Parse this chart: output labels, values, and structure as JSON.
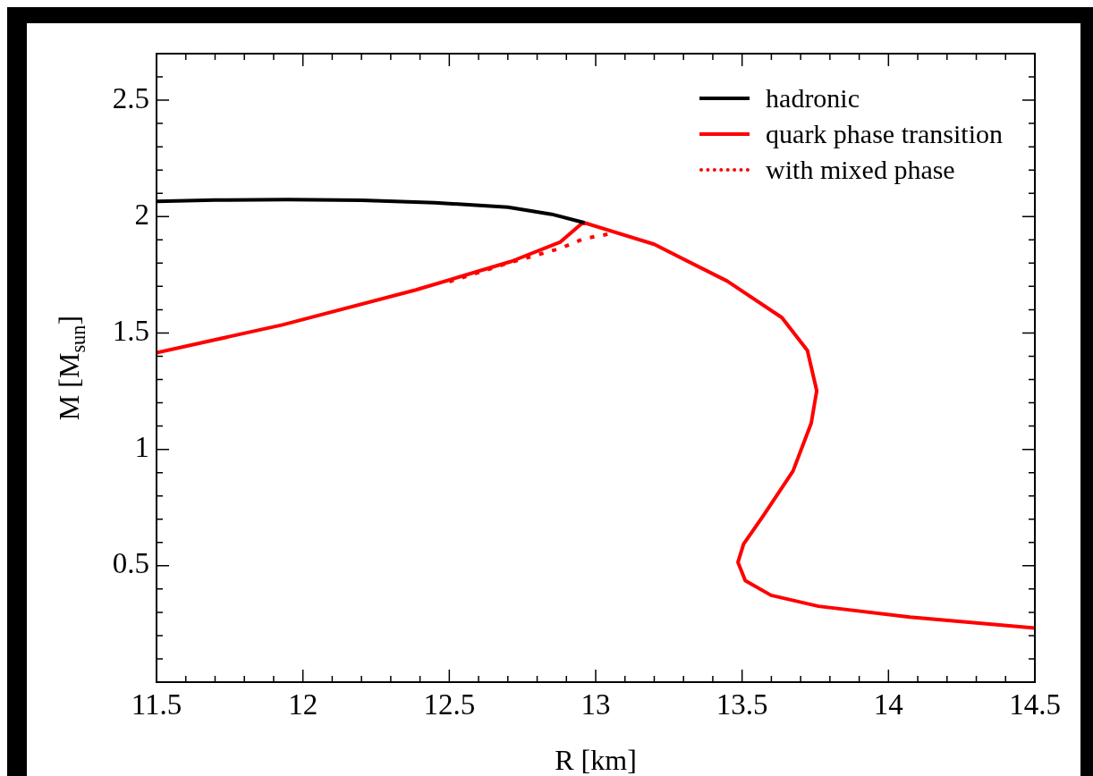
{
  "chart_data": {
    "type": "line",
    "xlabel": "R [km]",
    "ylabel": "M [M$_{sun}$]",
    "xlim": [
      11.5,
      14.5
    ],
    "ylim": [
      0,
      2.7
    ],
    "xticks": [
      11.5,
      {
        "value": 11.6,
        "label": null
      },
      {
        "value": 11.7,
        "label": null
      },
      {
        "value": 11.8,
        "label": null
      },
      {
        "value": 11.9,
        "label": null
      },
      12,
      {
        "value": 12.1,
        "label": null
      },
      {
        "value": 12.2,
        "label": null
      },
      {
        "value": 12.3,
        "label": null
      },
      {
        "value": 12.4,
        "label": null
      },
      12.5,
      {
        "value": 12.6,
        "label": null
      },
      {
        "value": 12.7,
        "label": null
      },
      {
        "value": 12.8,
        "label": null
      },
      {
        "value": 12.9,
        "label": null
      },
      13,
      {
        "value": 13.1,
        "label": null
      },
      {
        "value": 13.2,
        "label": null
      },
      {
        "value": 13.3,
        "label": null
      },
      {
        "value": 13.4,
        "label": null
      },
      13.5,
      {
        "value": 13.6,
        "label": null
      },
      {
        "value": 13.7,
        "label": null
      },
      {
        "value": 13.8,
        "label": null
      },
      {
        "value": 13.9,
        "label": null
      },
      14,
      {
        "value": 14.1,
        "label": null
      },
      {
        "value": 14.2,
        "label": null
      },
      {
        "value": 14.3,
        "label": null
      },
      {
        "value": 14.4,
        "label": null
      },
      14.5
    ],
    "yticks": [
      {
        "value": 0.1,
        "label": null
      },
      {
        "value": 0.2,
        "label": null
      },
      {
        "value": 0.3,
        "label": null
      },
      {
        "value": 0.4,
        "label": null
      },
      0.5,
      {
        "value": 0.6,
        "label": null
      },
      {
        "value": 0.7,
        "label": null
      },
      {
        "value": 0.8,
        "label": null
      },
      {
        "value": 0.9,
        "label": null
      },
      1,
      {
        "value": 1.1,
        "label": null
      },
      {
        "value": 1.2,
        "label": null
      },
      {
        "value": 1.3,
        "label": null
      },
      {
        "value": 1.4,
        "label": null
      },
      1.5,
      {
        "value": 1.6,
        "label": null
      },
      {
        "value": 1.7,
        "label": null
      },
      {
        "value": 1.8,
        "label": null
      },
      {
        "value": 1.9,
        "label": null
      },
      2,
      {
        "value": 2.1,
        "label": null
      },
      {
        "value": 2.2,
        "label": null
      },
      {
        "value": 2.3,
        "label": null
      },
      {
        "value": 2.4,
        "label": null
      },
      2.5,
      {
        "value": 2.6,
        "label": null
      }
    ],
    "legend": "top right",
    "grid": false,
    "series": [
      {
        "name": "hadronic",
        "color": "#000000",
        "line_style": "solid",
        "x": [
          11.5,
          11.7,
          11.95,
          12.2,
          12.45,
          12.7,
          12.85,
          12.957
        ],
        "values": [
          2.065,
          2.071,
          2.073,
          2.07,
          2.06,
          2.04,
          2.01,
          1.975
        ]
      },
      {
        "name": "quark phase transition",
        "color": "#ff0000",
        "line_style": "solid",
        "x": [
          11.5,
          11.93,
          12.386,
          12.713,
          12.878,
          12.957,
          13.2,
          13.449,
          13.636,
          13.723,
          13.755,
          13.736,
          13.674,
          13.574,
          13.505,
          13.486,
          13.511,
          13.599,
          13.761,
          14.073,
          14.5
        ],
        "values": [
          1.415,
          1.535,
          1.685,
          1.808,
          1.89,
          1.975,
          1.881,
          1.723,
          1.566,
          1.425,
          1.252,
          1.112,
          0.907,
          0.718,
          0.593,
          0.515,
          0.436,
          0.373,
          0.326,
          0.279,
          0.232
        ]
      },
      {
        "name": "with mixed phase",
        "color": "#ff0000",
        "line_style": "dotted",
        "x": [
          12.5,
          12.7,
          12.878,
          12.96,
          13.07
        ],
        "values": [
          1.72,
          1.8,
          1.863,
          1.905,
          1.931
        ]
      }
    ]
  }
}
